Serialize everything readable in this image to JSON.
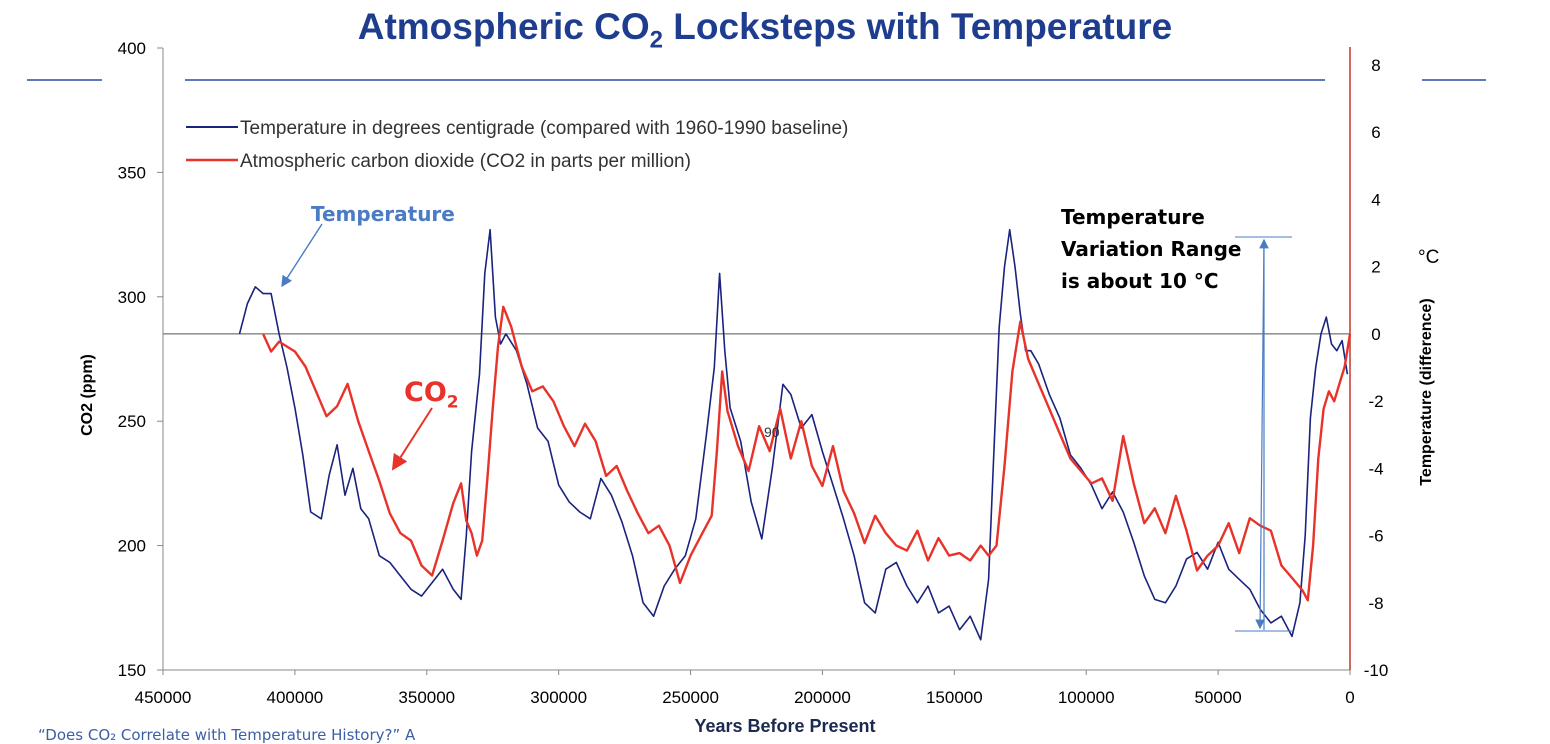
{
  "title": {
    "prefix": "Atmospheric CO",
    "sub": "2",
    "suffix": "  Locksteps with Temperature"
  },
  "chart_data": {
    "type": "line",
    "title": "Atmospheric CO2 Locksteps with Temperature",
    "xlabel": "Years Before Present",
    "ylabel": "CO2 (ppm)",
    "y2label": "Temperature (difference)",
    "y2unit": "°C",
    "xlim": [
      450000,
      0
    ],
    "ylim": [
      150,
      400
    ],
    "y2lim": [
      -10,
      8
    ],
    "x_ticks": [
      "450000",
      "400000",
      "350000",
      "300000",
      "250000",
      "200000",
      "150000",
      "100000",
      "50000",
      "0"
    ],
    "y_ticks": [
      "150",
      "200",
      "250",
      "300",
      "350",
      "400"
    ],
    "y2_ticks": [
      "-10",
      "-8",
      "-6",
      "-4",
      "-2",
      "0",
      "2",
      "4",
      "6",
      "8"
    ],
    "legend": [
      "Temperature in degrees centigrade (compared with 1960-1990 baseline)",
      "Atmospheric carbon dioxide (CO2 in parts per million)"
    ],
    "stray_label": "90",
    "series": [
      {
        "name": "Temperature",
        "axis": "right",
        "color": "#1a237e",
        "x": [
          421000,
          418000,
          415000,
          412000,
          409000,
          406000,
          403000,
          400000,
          397000,
          394000,
          390000,
          387000,
          384000,
          381000,
          378000,
          375000,
          372000,
          368000,
          364000,
          360000,
          356000,
          352000,
          348000,
          344000,
          340000,
          337000,
          335000,
          333000,
          330000,
          328000,
          326000,
          324000,
          322000,
          320000,
          316000,
          312000,
          308000,
          304000,
          300000,
          296000,
          292000,
          288000,
          284000,
          280000,
          276000,
          272000,
          268000,
          264000,
          260000,
          256000,
          252000,
          248000,
          244000,
          241000,
          239000,
          237000,
          235000,
          231000,
          227000,
          223000,
          219000,
          215000,
          212000,
          208000,
          204000,
          200000,
          196000,
          192000,
          188000,
          184000,
          180000,
          176000,
          172000,
          168000,
          164000,
          160000,
          156000,
          152000,
          148000,
          144000,
          140000,
          137000,
          135000,
          133000,
          131000,
          129000,
          127000,
          125000,
          123000,
          121000,
          118000,
          114000,
          110000,
          106000,
          102000,
          98000,
          94000,
          90000,
          86000,
          82000,
          78000,
          74000,
          70000,
          66000,
          62000,
          58000,
          54000,
          50000,
          46000,
          42000,
          38000,
          34000,
          30000,
          26000,
          22000,
          19000,
          17000,
          15000,
          13000,
          11000,
          9000,
          7000,
          5000,
          3000,
          1000
        ],
        "values": [
          0.0,
          0.9,
          1.4,
          1.2,
          1.2,
          0.0,
          -1.0,
          -2.2,
          -3.6,
          -5.3,
          -5.5,
          -4.2,
          -3.3,
          -4.8,
          -4.0,
          -5.2,
          -5.5,
          -6.6,
          -6.8,
          -7.2,
          -7.6,
          -7.8,
          -7.4,
          -7.0,
          -7.6,
          -7.9,
          -6.0,
          -3.5,
          -1.2,
          1.8,
          3.1,
          0.5,
          -0.3,
          0.0,
          -0.5,
          -1.5,
          -2.8,
          -3.2,
          -4.5,
          -5.0,
          -5.3,
          -5.5,
          -4.3,
          -4.8,
          -5.6,
          -6.6,
          -8.0,
          -8.4,
          -7.5,
          -7.0,
          -6.6,
          -5.5,
          -3.0,
          -1.0,
          1.8,
          -0.5,
          -2.2,
          -3.2,
          -5.0,
          -6.1,
          -4.0,
          -1.5,
          -1.8,
          -2.8,
          -2.4,
          -3.5,
          -4.5,
          -5.5,
          -6.6,
          -8.0,
          -8.3,
          -7.0,
          -6.8,
          -7.5,
          -8.0,
          -7.5,
          -8.3,
          -8.1,
          -8.8,
          -8.4,
          -9.1,
          -7.3,
          -3.5,
          0.2,
          2.0,
          3.1,
          2.0,
          0.6,
          -0.5,
          -0.5,
          -0.9,
          -1.8,
          -2.5,
          -3.6,
          -4.0,
          -4.5,
          -5.2,
          -4.7,
          -5.3,
          -6.2,
          -7.2,
          -7.9,
          -8.0,
          -7.5,
          -6.7,
          -6.5,
          -7.0,
          -6.2,
          -7.0,
          -7.3,
          -7.6,
          -8.2,
          -8.6,
          -8.4,
          -9.0,
          -8.0,
          -6.0,
          -2.5,
          -1.0,
          0.0,
          0.5,
          -0.3,
          -0.5,
          -0.2,
          -1.2
        ]
      },
      {
        "name": "CO2",
        "axis": "left",
        "color": "#e8332a",
        "x": [
          412000,
          409000,
          406000,
          403000,
          400000,
          396000,
          392000,
          388000,
          384000,
          380000,
          376000,
          372000,
          368000,
          364000,
          360000,
          356000,
          352000,
          348000,
          344000,
          340000,
          337000,
          335000,
          333000,
          331000,
          329000,
          327000,
          325000,
          323000,
          321000,
          318000,
          314000,
          310000,
          306000,
          302000,
          298000,
          294000,
          290000,
          286000,
          282000,
          278000,
          274000,
          270000,
          266000,
          262000,
          258000,
          254000,
          250000,
          246000,
          242000,
          240000,
          238000,
          236000,
          232000,
          228000,
          224000,
          220000,
          216000,
          212000,
          208000,
          204000,
          200000,
          196000,
          192000,
          188000,
          184000,
          180000,
          176000,
          172000,
          168000,
          164000,
          160000,
          156000,
          152000,
          148000,
          144000,
          140000,
          137000,
          134000,
          131000,
          128000,
          125000,
          122000,
          118000,
          114000,
          110000,
          106000,
          102000,
          98000,
          94000,
          90000,
          86000,
          82000,
          78000,
          74000,
          70000,
          66000,
          62000,
          58000,
          54000,
          50000,
          46000,
          42000,
          38000,
          34000,
          30000,
          26000,
          22000,
          18000,
          16000,
          14000,
          12000,
          10000,
          8000,
          6000,
          4000,
          2000,
          0
        ],
        "values": [
          285,
          278,
          282,
          280,
          278,
          272,
          262,
          252,
          256,
          265,
          250,
          238,
          226,
          213,
          205,
          202,
          192,
          188,
          202,
          217,
          225,
          210,
          205,
          196,
          202,
          227,
          255,
          280,
          296,
          288,
          272,
          262,
          264,
          258,
          248,
          240,
          249,
          242,
          228,
          232,
          222,
          213,
          205,
          208,
          200,
          185,
          196,
          204,
          212,
          238,
          270,
          254,
          240,
          230,
          248,
          238,
          255,
          235,
          250,
          232,
          224,
          240,
          222,
          213,
          201,
          212,
          205,
          200,
          198,
          206,
          194,
          203,
          196,
          197,
          194,
          200,
          196,
          200,
          232,
          270,
          290,
          275,
          265,
          255,
          245,
          235,
          230,
          225,
          227,
          218,
          244,
          225,
          209,
          215,
          205,
          220,
          206,
          190,
          196,
          200,
          209,
          197,
          211,
          208,
          206,
          192,
          187,
          182,
          178,
          200,
          235,
          255,
          262,
          258,
          265,
          272,
          285
        ]
      }
    ],
    "annotations": {
      "temp_label": "Temperature",
      "co2_label": "CO",
      "co2_sub": "2",
      "range_line1": "Temperature",
      "range_line2": "Variation Range",
      "range_line3": "is about 10 °C"
    }
  },
  "footer": "“Does CO₂ Correlate with Temperature History?” A"
}
